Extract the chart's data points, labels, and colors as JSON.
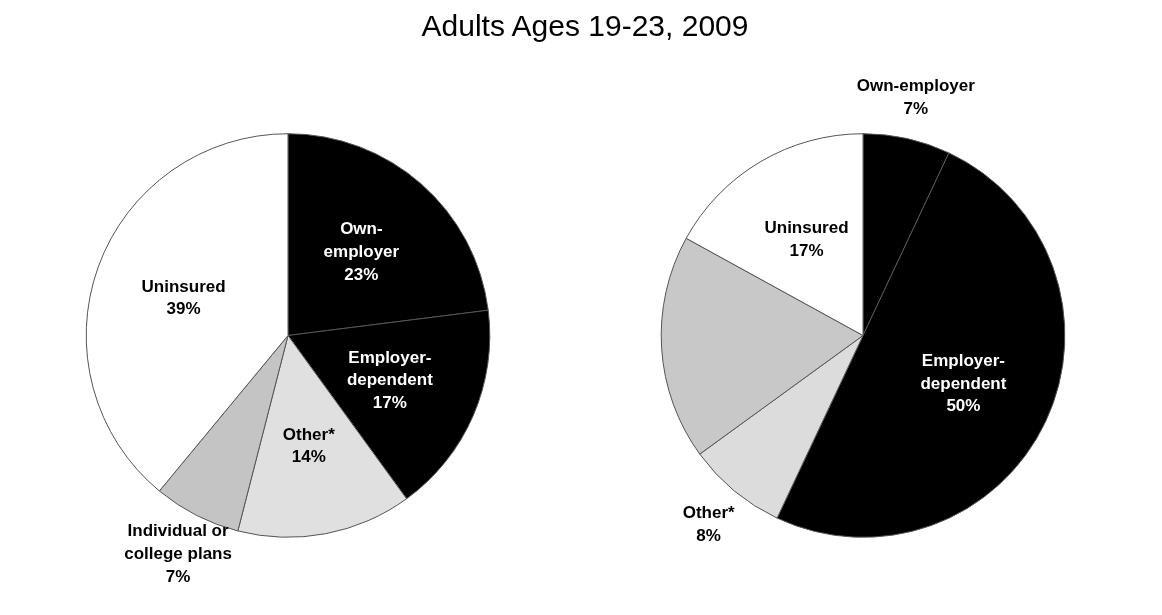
{
  "chart_data": [
    {
      "type": "pie",
      "title": "Adults Ages 19-23, 2009",
      "categories": [
        "Own-employer",
        "Employer-dependent",
        "Other*",
        "Individual or college plans",
        "Uninsured"
      ],
      "values": [
        23,
        17,
        14,
        7,
        39
      ],
      "colors": [
        "#000000",
        "#000000",
        "#e0e0e0",
        "#c4c4c4",
        "#ffffff"
      ],
      "value_labels": [
        "23%",
        "17%",
        "14%",
        "7%",
        "39%"
      ]
    },
    {
      "type": "pie",
      "categories": [
        "Own-employer",
        "Employer-dependent",
        "Other*",
        null,
        "Uninsured"
      ],
      "values": [
        7,
        50,
        8,
        18,
        17
      ],
      "colors": [
        "#000000",
        "#000000",
        "#dcdcdc",
        "#c8c8c8",
        "#ffffff"
      ],
      "value_labels": [
        "7%",
        "50%",
        "8%",
        null,
        "17%"
      ]
    }
  ]
}
